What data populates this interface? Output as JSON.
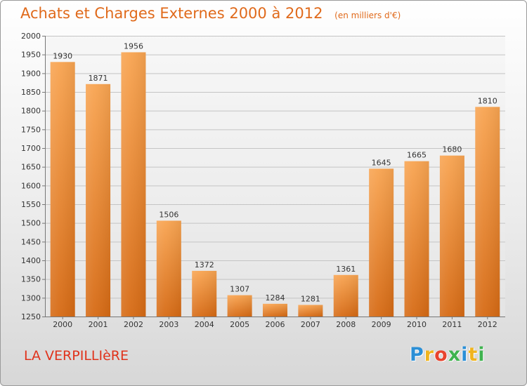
{
  "chart_data": {
    "type": "bar",
    "title": "Achats et Charges Externes 2000 à 2012",
    "subtitle": "(en milliers d'€)",
    "categories": [
      "2000",
      "2001",
      "2002",
      "2003",
      "2004",
      "2005",
      "2006",
      "2007",
      "2008",
      "2009",
      "2010",
      "2011",
      "2012"
    ],
    "values": [
      1930,
      1871,
      1956,
      1506,
      1372,
      1307,
      1284,
      1281,
      1361,
      1645,
      1665,
      1680,
      1810
    ],
    "ylim": [
      1250,
      2000
    ],
    "yticks": [
      1250,
      1300,
      1350,
      1400,
      1450,
      1500,
      1550,
      1600,
      1650,
      1700,
      1750,
      1800,
      1850,
      1900,
      1950,
      2000
    ],
    "grid": true,
    "legend": "none",
    "bar_color": "#f07d24"
  },
  "commune": "LA VERPILLIèRE",
  "logo": {
    "text": "Proxiti",
    "letters": [
      {
        "ch": "P",
        "color": "#2b8fd6"
      },
      {
        "ch": "r",
        "color": "#f0b41e"
      },
      {
        "ch": "o",
        "color": "#e8442e"
      },
      {
        "ch": "x",
        "color": "#3fb34f"
      },
      {
        "ch": "i",
        "color": "#2b8fd6"
      },
      {
        "ch": "t",
        "color": "#f0b41e"
      },
      {
        "ch": "i",
        "color": "#3fb34f"
      }
    ]
  }
}
